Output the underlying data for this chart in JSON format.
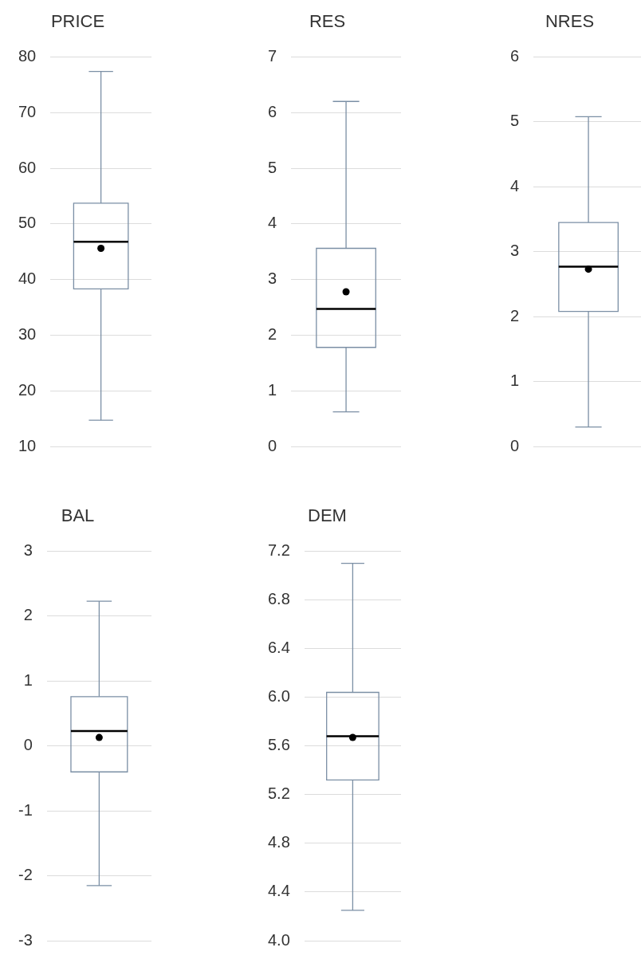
{
  "chart_data": [
    {
      "type": "box",
      "title": "PRICE",
      "categories": [
        null
      ],
      "color": "#7b8fa5",
      "boxes": [
        {
          "low": 14.7,
          "q1": 38.3,
          "median": 46.8,
          "q3": 53.7,
          "high": 77.4,
          "mean": 45.6
        }
      ],
      "ylim": [
        10,
        80
      ],
      "yticks": [
        10,
        20,
        30,
        40,
        50,
        60,
        70,
        80
      ],
      "grid": "y",
      "tick_labels": "y"
    },
    {
      "type": "box",
      "title": "RES",
      "categories": [
        null
      ],
      "color": "#7b8fa5",
      "boxes": [
        {
          "low": 0.62,
          "q1": 1.78,
          "median": 2.47,
          "q3": 3.56,
          "high": 6.2,
          "mean": 2.78
        }
      ],
      "ylim": [
        0,
        7
      ],
      "yticks": [
        0,
        1,
        2,
        3,
        4,
        5,
        6,
        7
      ],
      "grid": "y",
      "tick_labels": "y"
    },
    {
      "type": "box",
      "title": "NRES",
      "categories": [
        null
      ],
      "color": "#7b8fa5",
      "boxes": [
        {
          "low": 0.3,
          "q1": 2.08,
          "median": 2.77,
          "q3": 3.45,
          "high": 5.08,
          "mean": 2.73
        }
      ],
      "ylim": [
        0,
        6
      ],
      "yticks": [
        0,
        1,
        2,
        3,
        4,
        5,
        6
      ],
      "grid": "y",
      "tick_labels": "y"
    },
    {
      "type": "box",
      "title": "BAL",
      "categories": [
        null
      ],
      "color": "#7b8fa5",
      "boxes": [
        {
          "low": -2.15,
          "q1": -0.4,
          "median": 0.23,
          "q3": 0.76,
          "high": 2.23,
          "mean": 0.13
        }
      ],
      "ylim": [
        -3,
        3
      ],
      "yticks": [
        -3,
        -2,
        -1,
        0,
        1,
        2,
        3
      ],
      "grid": "y",
      "tick_labels": "y"
    },
    {
      "type": "box",
      "title": "DEM",
      "categories": [
        null
      ],
      "color": "#7b8fa5",
      "boxes": [
        {
          "low": 4.25,
          "q1": 5.32,
          "median": 5.68,
          "q3": 6.04,
          "high": 7.1,
          "mean": 5.67
        }
      ],
      "ylim": [
        4.0,
        7.2
      ],
      "yticks": [
        {
          "value": 4.0,
          "label": "4.0"
        },
        {
          "value": 4.4,
          "label": "4.4"
        },
        {
          "value": 4.8,
          "label": "4.8"
        },
        {
          "value": 5.2,
          "label": "5.2"
        },
        {
          "value": 5.6,
          "label": "5.6"
        },
        {
          "value": 6.0,
          "label": "6.0"
        },
        {
          "value": 6.4,
          "label": "6.4"
        },
        {
          "value": 6.8,
          "label": "6.8"
        },
        {
          "value": 7.2,
          "label": "7.2"
        }
      ],
      "grid": "y",
      "tick_labels": "y"
    }
  ]
}
